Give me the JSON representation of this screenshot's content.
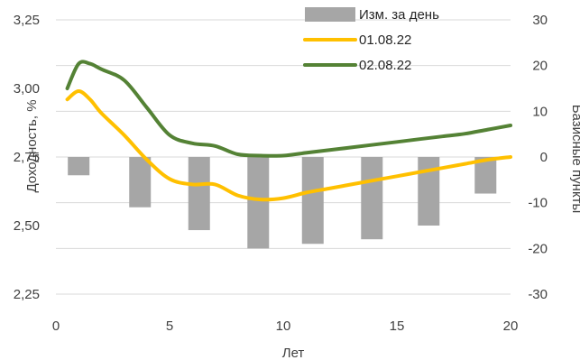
{
  "chart_data": {
    "type": "line",
    "xlabel": "Лет",
    "ylabel_left": "Доходность, %",
    "ylabel_right": "Базисные пункты",
    "xlim": [
      0,
      20
    ],
    "ylim_left": [
      2.25,
      3.25
    ],
    "ylim_right": [
      -30,
      30
    ],
    "x_ticks": [
      0,
      5,
      10,
      15,
      20
    ],
    "x_tick_labels": [
      "0",
      "5",
      "10",
      "15",
      "20"
    ],
    "y_left_ticks": [
      2.25,
      2.5,
      2.75,
      3.0,
      3.25
    ],
    "y_left_tick_labels": [
      "2,25",
      "2,50",
      "2,75",
      "3,00",
      "3,25"
    ],
    "y_right_ticks": [
      -30,
      -20,
      -10,
      0,
      10,
      20,
      30
    ],
    "y_right_tick_labels": [
      "-30",
      "-20",
      "-10",
      "0",
      "10",
      "20",
      "30"
    ],
    "grid": "horizontal",
    "legend_position": "top-right",
    "series": [
      {
        "name": "Изм. за день",
        "kind": "bar",
        "axis": "right",
        "color": "#a6a6a6",
        "x": [
          1,
          3.7,
          6.3,
          8.9,
          11.3,
          13.9,
          16.4,
          18.9
        ],
        "values": [
          -4,
          -11,
          -16,
          -20,
          -19,
          -18,
          -15,
          -8
        ]
      },
      {
        "name": "01.08.22",
        "kind": "line",
        "axis": "left",
        "color": "#ffc000",
        "x": [
          0.5,
          1,
          1.5,
          2,
          3,
          4,
          5,
          6,
          7,
          8,
          9,
          10,
          11,
          12,
          13,
          14,
          15,
          16,
          17,
          18,
          19,
          20
        ],
        "values": [
          2.96,
          2.99,
          2.96,
          2.91,
          2.83,
          2.74,
          2.67,
          2.65,
          2.65,
          2.61,
          2.595,
          2.6,
          2.62,
          2.635,
          2.65,
          2.665,
          2.68,
          2.695,
          2.71,
          2.725,
          2.74,
          2.75
        ]
      },
      {
        "name": "02.08.22",
        "kind": "line",
        "axis": "left",
        "color": "#548235",
        "x": [
          0.5,
          1,
          1.5,
          2,
          3,
          4,
          5,
          6,
          7,
          8,
          9,
          10,
          11,
          12,
          13,
          14,
          15,
          16,
          17,
          18,
          19,
          20
        ],
        "values": [
          3.0,
          3.09,
          3.09,
          3.07,
          3.03,
          2.93,
          2.83,
          2.8,
          2.79,
          2.76,
          2.755,
          2.755,
          2.765,
          2.775,
          2.785,
          2.795,
          2.805,
          2.815,
          2.825,
          2.835,
          2.85,
          2.865
        ]
      }
    ]
  }
}
